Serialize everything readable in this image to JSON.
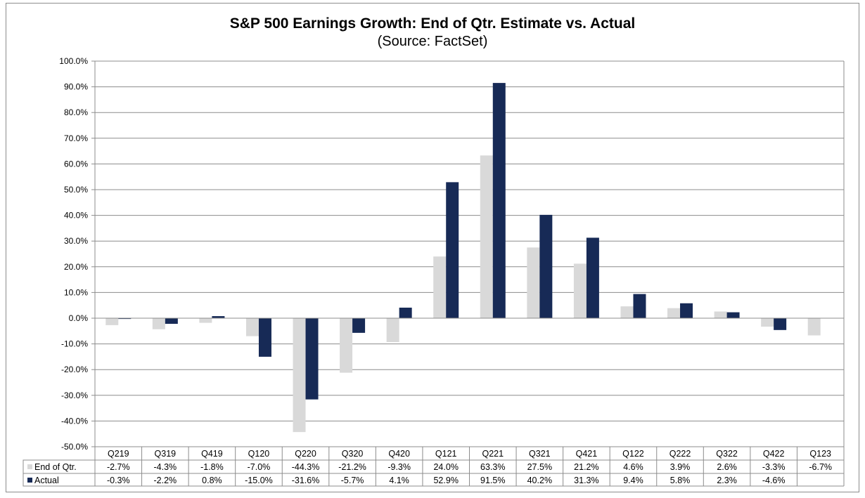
{
  "chart_data": {
    "type": "bar",
    "title": "S&P 500 Earnings Growth: End of Qtr. Estimate vs. Actual",
    "subtitle": "(Source: FactSet)",
    "xlabel": "",
    "ylabel": "",
    "ylim": [
      -50,
      100
    ],
    "ytick_step": 10,
    "ytick_labels": [
      "100.0%",
      "90.0%",
      "80.0%",
      "70.0%",
      "60.0%",
      "50.0%",
      "40.0%",
      "30.0%",
      "20.0%",
      "10.0%",
      "0.0%",
      "-10.0%",
      "-20.0%",
      "-30.0%",
      "-40.0%",
      "-50.0%"
    ],
    "grid": true,
    "legend": "data-table",
    "categories": [
      "Q219",
      "Q319",
      "Q419",
      "Q120",
      "Q220",
      "Q320",
      "Q420",
      "Q121",
      "Q221",
      "Q321",
      "Q421",
      "Q122",
      "Q222",
      "Q322",
      "Q422",
      "Q123"
    ],
    "series": [
      {
        "name": "End of Qtr.",
        "color": "#d9d9d9",
        "values": [
          -2.7,
          -4.3,
          -1.8,
          -7.0,
          -44.3,
          -21.2,
          -9.3,
          24.0,
          63.3,
          27.5,
          21.2,
          4.6,
          3.9,
          2.6,
          -3.3,
          -6.7
        ],
        "labels": [
          "-2.7%",
          "-4.3%",
          "-1.8%",
          "-7.0%",
          "-44.3%",
          "-21.2%",
          "-9.3%",
          "24.0%",
          "63.3%",
          "27.5%",
          "21.2%",
          "4.6%",
          "3.9%",
          "2.6%",
          "-3.3%",
          "-6.7%"
        ]
      },
      {
        "name": "Actual",
        "color": "#172a56",
        "values": [
          -0.3,
          -2.2,
          0.8,
          -15.0,
          -31.6,
          -5.7,
          4.1,
          52.9,
          91.5,
          40.2,
          31.3,
          9.4,
          5.8,
          2.3,
          -4.6,
          null
        ],
        "labels": [
          "-0.3%",
          "-2.2%",
          "0.8%",
          "-15.0%",
          "-31.6%",
          "-5.7%",
          "4.1%",
          "52.9%",
          "91.5%",
          "40.2%",
          "31.3%",
          "9.4%",
          "5.8%",
          "2.3%",
          "-4.6%",
          ""
        ]
      }
    ]
  }
}
